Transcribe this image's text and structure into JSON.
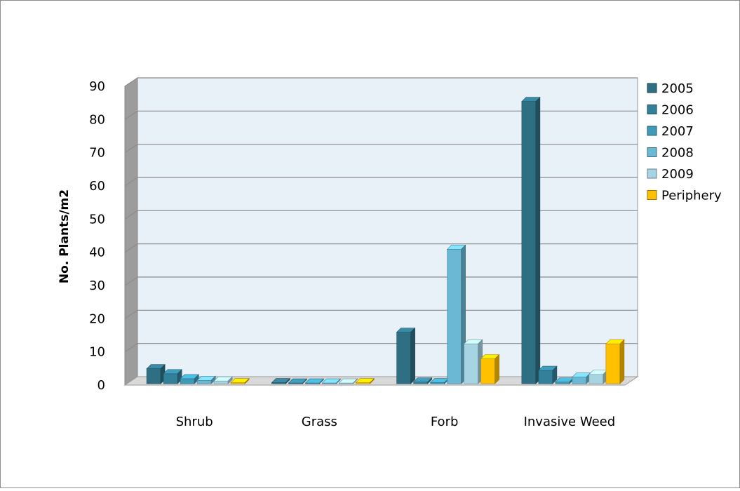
{
  "chart_data": {
    "type": "bar",
    "title": "",
    "xlabel": "",
    "ylabel": "No. Plants/m2",
    "ylim": [
      0,
      90
    ],
    "yticks": [
      0,
      10,
      20,
      30,
      40,
      50,
      60,
      70,
      80,
      90
    ],
    "grid": true,
    "legend_position": "right",
    "categories": [
      "Shrub",
      "Grass",
      "Forb",
      "Invasive Weed"
    ],
    "series": [
      {
        "name": "2005",
        "color": "#2e6f84",
        "values": [
          4.5,
          0.3,
          15.5,
          85
        ]
      },
      {
        "name": "2006",
        "color": "#33809a",
        "values": [
          3.0,
          0.2,
          0.5,
          4.0
        ]
      },
      {
        "name": "2007",
        "color": "#3d9ab8",
        "values": [
          1.5,
          0.2,
          0.3,
          0.5
        ]
      },
      {
        "name": "2008",
        "color": "#6ab8d4",
        "values": [
          1.0,
          0.2,
          40.5,
          2.0
        ]
      },
      {
        "name": "2009",
        "color": "#a7d4e3",
        "values": [
          0.8,
          0.2,
          12.0,
          2.8
        ]
      },
      {
        "name": "Periphery",
        "color": "#ffc000",
        "values": [
          0.3,
          0.3,
          7.5,
          12.0
        ]
      }
    ]
  }
}
